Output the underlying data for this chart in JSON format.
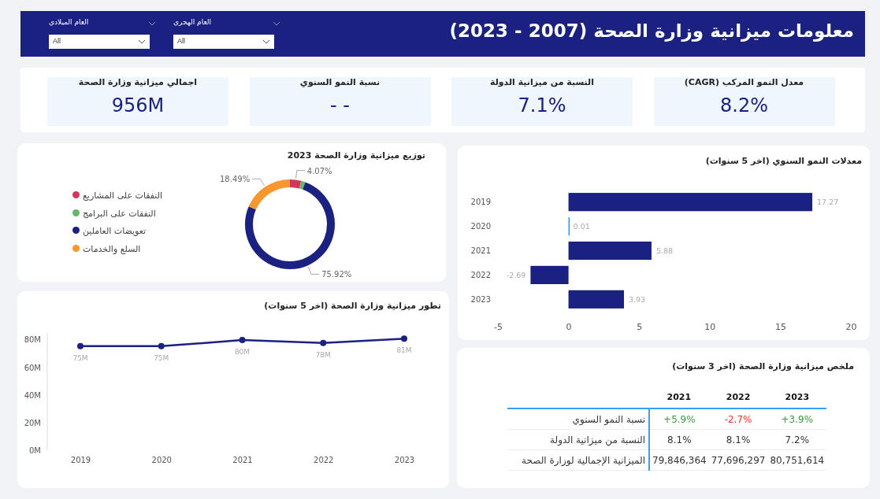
{
  "chart_data": [
    {
      "type": "other",
      "title": "معلومات ميزانية وزارة الصحة (2007 - 2023)",
      "annotations": [
        "العام الميلادي",
        "All",
        "العام الهجري",
        "All"
      ]
    },
    {
      "type": "other",
      "annotations": [
        "اجمالي ميزانية وزارة الصحة",
        "956M",
        "نسبة النمو السنوي",
        "- -",
        "النسبة من ميزانية الدولة",
        "7.1%",
        "معدل النمو المركب (CAGR)",
        "8.2%"
      ]
    },
    {
      "type": "donut",
      "title": "توزيع ميزانية وزارة الصحة 2023",
      "categories": [
        "النفقات على المشاريع",
        "النفقات على البرامج",
        "تعويضات العاملين",
        "السلع والخدمات"
      ],
      "values": [
        4.07,
        1.52,
        75.92,
        18.49
      ],
      "colors": [
        "#d0375e",
        "#64b968",
        "#1b2180",
        "#f7972d"
      ],
      "value_labels": [
        "4.07%",
        null,
        "75.92%",
        "18.49%"
      ],
      "legend": "left"
    },
    {
      "type": "bar",
      "orientation": "horizontal",
      "title": "معدلات النمو السنوي (اخر 5 سنوات)",
      "categories": [
        "2019",
        "2020",
        "2021",
        "2022",
        "2023"
      ],
      "values": [
        17.27,
        0.01,
        5.88,
        -2.69,
        3.93
      ],
      "colors": [
        "#1b2180",
        "#2a95f0",
        "#1b2180",
        "#1b2180",
        "#1b2180"
      ],
      "xlim": [
        -5,
        20
      ],
      "xticks": [
        -5,
        0,
        5,
        10,
        15,
        20
      ],
      "data_labels": true
    },
    {
      "type": "line",
      "title": "تطور ميزانية وزارة الصحة (اخر 5 سنوات)",
      "categories": [
        "2019",
        "2020",
        "2021",
        "2022",
        "2023"
      ],
      "values": [
        75.4,
        75.4,
        79.8,
        77.7,
        80.8
      ],
      "value_labels": [
        "75M",
        "75M",
        "80M",
        "78M",
        "81M"
      ],
      "color": "#1b2180",
      "marker": "circle",
      "ylim": [
        0,
        85
      ],
      "yticks": [
        {
          "value": 0,
          "label": "0M"
        },
        {
          "value": 20,
          "label": "20M"
        },
        {
          "value": 40,
          "label": "40M"
        },
        {
          "value": 60,
          "label": "60M"
        },
        {
          "value": 80,
          "label": "80M"
        }
      ]
    },
    {
      "type": "other",
      "title": "ملخص ميزانية وزارة الصحة (اخر 3 سنوات)",
      "categories": [
        "2021",
        "2022",
        "2023"
      ],
      "y_categories": [
        "نسبة النمو السنوي",
        "النسبة من ميزانية الدولة",
        "الميزانية الإجمالية لوزارة الصحة"
      ],
      "cell_labels": [
        [
          "+5.9%",
          "-2.7%",
          "+3.9%"
        ],
        [
          "8.1%",
          "8.1%",
          "7.2%"
        ],
        [
          "79,846,364",
          "77,696,297",
          "80,751,614"
        ]
      ],
      "colors": [
        [
          "#3a9a3a",
          "#e0352b",
          "#3a9a3a"
        ],
        [
          "#333333",
          "#333333",
          "#333333"
        ],
        [
          "#333333",
          "#333333",
          "#333333"
        ]
      ]
    }
  ]
}
